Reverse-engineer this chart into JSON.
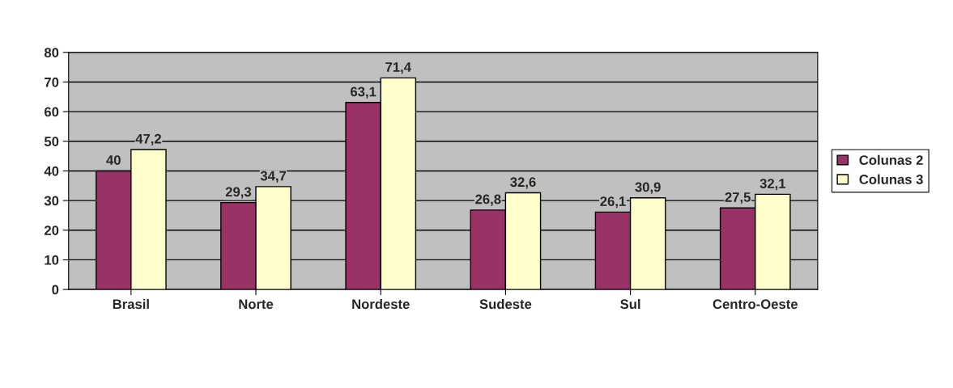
{
  "chart_data": {
    "type": "bar",
    "categories": [
      "Brasil",
      "Norte",
      "Nordeste",
      "Sudeste",
      "Sul",
      "Centro-Oeste"
    ],
    "series": [
      {
        "name": "Colunas 2",
        "color": "#993366",
        "values": [
          40,
          29.3,
          63.1,
          26.8,
          26.1,
          27.5
        ],
        "value_labels": [
          "40",
          "29,3",
          "63,1",
          "26,8",
          "26,1",
          "27,5"
        ]
      },
      {
        "name": "Colunas 3",
        "color": "#ffffcc",
        "values": [
          47.2,
          34.7,
          71.4,
          32.6,
          30.9,
          32.1
        ],
        "value_labels": [
          "47,2",
          "34,7",
          "71,4",
          "32,6",
          "30,9",
          "32,1"
        ]
      }
    ],
    "ylim": [
      0,
      80
    ],
    "yticks": [
      0,
      10,
      20,
      30,
      40,
      50,
      60,
      70,
      80
    ],
    "grid": "y",
    "legend": "right"
  }
}
